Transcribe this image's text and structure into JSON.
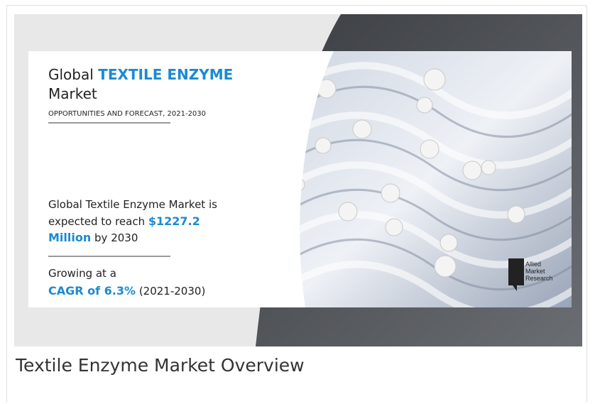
{
  "infographic": {
    "title_prefix": "Global",
    "title_highlight": "TEXTILE ENZYME",
    "title_suffix": "Market",
    "subtitle": "OPPORTUNITIES AND FORECAST, 2021-2030",
    "reach_line1": "Global Textile Enzyme Market is",
    "reach_line2": "expected to reach",
    "reach_value_part1": "$1227.2",
    "reach_value_part2": "Million",
    "reach_suffix": "by 2030",
    "growth_text": "Growing at a",
    "cagr": "CAGR of 6.3%",
    "cagr_period": "(2021-2030)",
    "logo": [
      "Allied",
      "Market",
      "Research"
    ]
  },
  "caption": "Textile Enzyme Market Overview"
}
